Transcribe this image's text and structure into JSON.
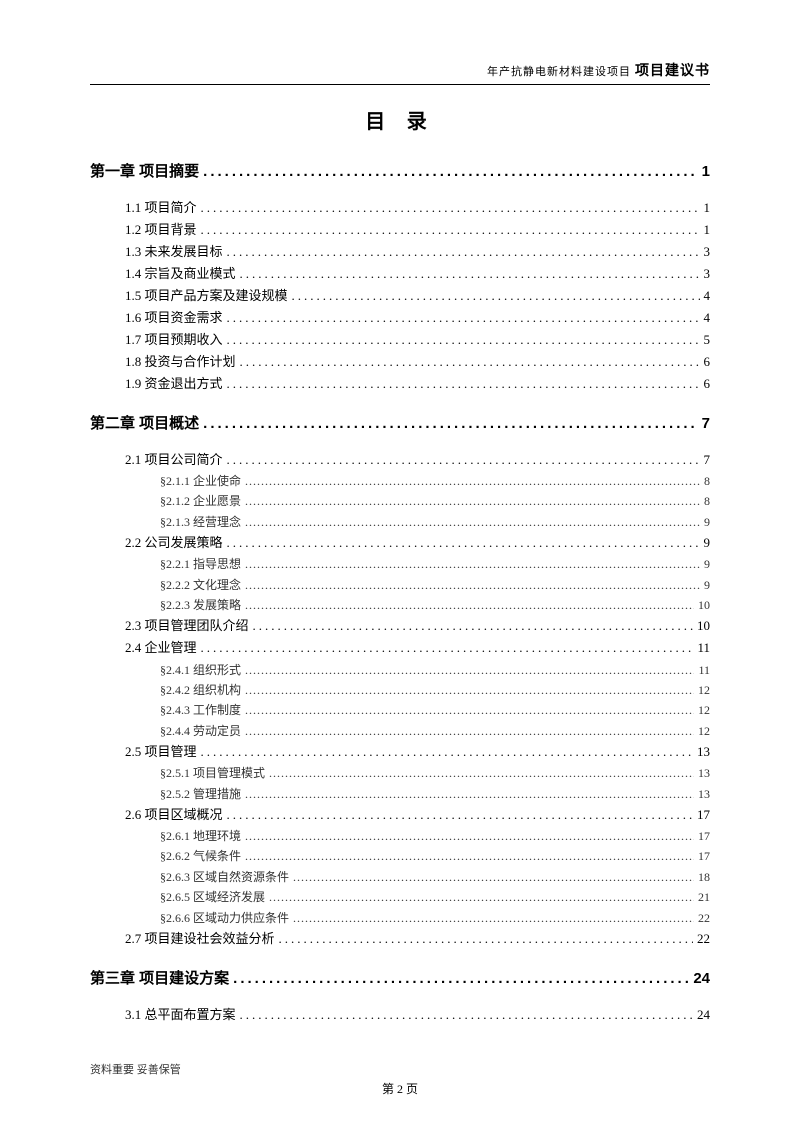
{
  "header": {
    "small": "年产抗静电新材料建设项目",
    "bold": "项目建议书"
  },
  "title": "目 录",
  "entries": [
    {
      "level": "chapter",
      "label": "第一章 项目摘要",
      "page": "1"
    },
    {
      "level": "section",
      "label": "1.1 项目简介",
      "page": "1"
    },
    {
      "level": "section",
      "label": "1.2 项目背景",
      "page": "1"
    },
    {
      "level": "section",
      "label": "1.3 未来发展目标",
      "page": "3"
    },
    {
      "level": "section",
      "label": "1.4 宗旨及商业模式",
      "page": "3"
    },
    {
      "level": "section",
      "label": "1.5 项目产品方案及建设规模",
      "page": "4"
    },
    {
      "level": "section",
      "label": "1.6 项目资金需求",
      "page": "4"
    },
    {
      "level": "section",
      "label": "1.7 项目预期收入",
      "page": "5"
    },
    {
      "level": "section",
      "label": "1.8 投资与合作计划",
      "page": "6"
    },
    {
      "level": "section",
      "label": "1.9 资金退出方式",
      "page": "6"
    },
    {
      "level": "chapter",
      "label": "第二章 项目概述",
      "page": "7"
    },
    {
      "level": "section",
      "label": "2.1 项目公司简介",
      "page": "7"
    },
    {
      "level": "subsection",
      "label": "§2.1.1 企业使命",
      "page": "8"
    },
    {
      "level": "subsection",
      "label": "§2.1.2 企业愿景",
      "page": "8"
    },
    {
      "level": "subsection",
      "label": "§2.1.3 经营理念",
      "page": "9"
    },
    {
      "level": "section",
      "label": "2.2 公司发展策略",
      "page": "9"
    },
    {
      "level": "subsection",
      "label": "§2.2.1 指导思想",
      "page": "9"
    },
    {
      "level": "subsection",
      "label": "§2.2.2 文化理念",
      "page": "9"
    },
    {
      "level": "subsection",
      "label": "§2.2.3 发展策略",
      "page": "10"
    },
    {
      "level": "section",
      "label": "2.3 项目管理团队介绍",
      "page": "10"
    },
    {
      "level": "section",
      "label": "2.4 企业管理",
      "page": "11"
    },
    {
      "level": "subsection",
      "label": "§2.4.1 组织形式",
      "page": "11"
    },
    {
      "level": "subsection",
      "label": "§2.4.2 组织机构",
      "page": "12"
    },
    {
      "level": "subsection",
      "label": "§2.4.3 工作制度",
      "page": "12"
    },
    {
      "level": "subsection",
      "label": "§2.4.4 劳动定员",
      "page": "12"
    },
    {
      "level": "section",
      "label": "2.5 项目管理",
      "page": "13"
    },
    {
      "level": "subsection",
      "label": "§2.5.1 项目管理模式",
      "page": "13"
    },
    {
      "level": "subsection",
      "label": "§2.5.2 管理措施",
      "page": "13"
    },
    {
      "level": "section",
      "label": "2.6 项目区域概况",
      "page": "17"
    },
    {
      "level": "subsection",
      "label": "§2.6.1 地理环境",
      "page": "17"
    },
    {
      "level": "subsection",
      "label": "§2.6.2 气候条件",
      "page": "17"
    },
    {
      "level": "subsection",
      "label": "§2.6.3 区域自然资源条件",
      "page": "18"
    },
    {
      "level": "subsection",
      "label": "§2.6.5 区域经济发展",
      "page": "21"
    },
    {
      "level": "subsection",
      "label": "§2.6.6 区域动力供应条件",
      "page": "22"
    },
    {
      "level": "section",
      "label": "2.7 项目建设社会效益分析",
      "page": "22"
    },
    {
      "level": "chapter",
      "label": "第三章 项目建设方案",
      "page": "24"
    },
    {
      "level": "section",
      "label": "3.1 总平面布置方案",
      "page": "24"
    }
  ],
  "footer": {
    "note": "资料重要  妥善保管",
    "pageNumber": "第 2 页"
  }
}
